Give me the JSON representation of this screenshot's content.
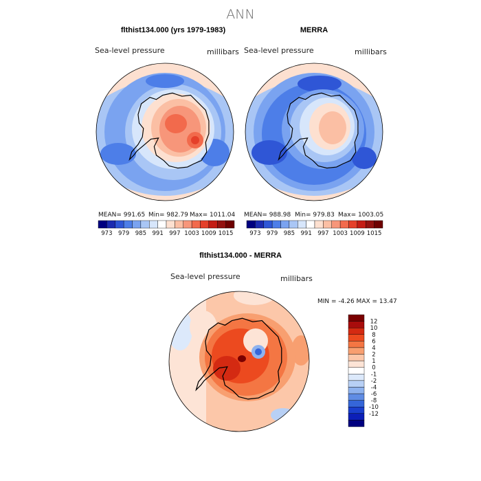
{
  "title": "ANN",
  "variable_label": "Sea-level pressure",
  "units_label": "millibars",
  "panels": {
    "model": {
      "title": "flthist134.000 (yrs 1979-1983)",
      "mean_text": "MEAN=  991.65",
      "min_text": "Min=  982.79",
      "max_text": "Max=  1011.04"
    },
    "obs": {
      "title": "MERRA",
      "mean_text": "MEAN=  988.98",
      "min_text": "Min=  979.83",
      "max_text": "Max=  1003.05"
    },
    "diff": {
      "title": "flthist134.000 - MERRA",
      "minmax_text": "MIN =  -4.26 MAX =  13.47"
    }
  },
  "colorbar_top": {
    "colors": [
      "#000080",
      "#1c2bb0",
      "#2f56d6",
      "#4d7ee8",
      "#7aa3f0",
      "#a9c6f5",
      "#d7e6fb",
      "#ffffff",
      "#fde0d0",
      "#fbbfa4",
      "#f7967a",
      "#f26a4c",
      "#e5402a",
      "#c41c14",
      "#93110f",
      "#6e0000"
    ],
    "labels": [
      "973",
      "979",
      "985",
      "991",
      "997",
      "1003",
      "1009",
      "1015"
    ]
  },
  "colorbar_diff": {
    "colors": [
      "#7a0000",
      "#a80c0c",
      "#d42a12",
      "#ec4a1f",
      "#f47643",
      "#f89f70",
      "#fcc7a9",
      "#fde4d6",
      "#ffffff",
      "#dce9fb",
      "#b8d0f5",
      "#8eb2ee",
      "#5f8ce4",
      "#3566d8",
      "#1a3fcd",
      "#0c1fb8",
      "#000080"
    ],
    "labels": [
      "12",
      "10",
      "8",
      "6",
      "4",
      "2",
      "1",
      "0",
      "-1",
      "-2",
      "-4",
      "-6",
      "-8",
      "-10",
      "-12"
    ]
  }
}
